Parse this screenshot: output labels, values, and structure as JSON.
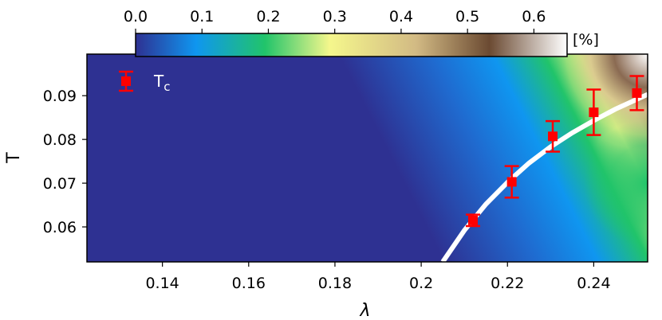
{
  "chart_data": {
    "type": "heatmap",
    "xlabel": "λ",
    "ylabel": "T",
    "xlim": [
      0.1225,
      0.2525
    ],
    "ylim": [
      0.052,
      0.0995
    ],
    "x_ticks": [
      0.14,
      0.16,
      0.18,
      0.2,
      0.22,
      0.24
    ],
    "x_tick_labels": [
      "0.14",
      "0.16",
      "0.18",
      "0.2",
      "0.22",
      "0.24"
    ],
    "y_ticks": [
      0.06,
      0.07,
      0.08,
      0.09
    ],
    "y_tick_labels": [
      "0.06",
      "0.07",
      "0.08",
      "0.09"
    ],
    "colorbar": {
      "range": [
        0.0,
        0.65
      ],
      "ticks": [
        0.0,
        0.1,
        0.2,
        0.3,
        0.4,
        0.5,
        0.6
      ],
      "tick_labels": [
        "0.0",
        "0.1",
        "0.2",
        "0.3",
        "0.4",
        "0.5",
        "0.6"
      ],
      "unit_label": "[%]",
      "colormap": [
        "#2e3192",
        "#0f96f0",
        "#21c46a",
        "#f5f78c",
        "#d2ba84",
        "#6b4a32",
        "#ffffff"
      ]
    },
    "series": [
      {
        "name": "T",
        "name_subscript": "c",
        "kind": "errorbar",
        "color": "#ff0000",
        "x": [
          0.212,
          0.221,
          0.2305,
          0.24,
          0.25
        ],
        "y": [
          0.0615,
          0.0703,
          0.0807,
          0.0862,
          0.0906
        ],
        "yerr": [
          0.0013,
          0.0036,
          0.0035,
          0.0052,
          0.0039
        ]
      },
      {
        "kind": "fit-curve",
        "color": "#ffffff",
        "x": [
          0.205,
          0.21,
          0.215,
          0.22,
          0.225,
          0.23,
          0.235,
          0.24,
          0.245,
          0.2525
        ],
        "y": [
          0.052,
          0.0592,
          0.0652,
          0.0702,
          0.0746,
          0.0783,
          0.0815,
          0.0843,
          0.0869,
          0.0903
        ]
      }
    ],
    "legend_position": "upper-left"
  }
}
